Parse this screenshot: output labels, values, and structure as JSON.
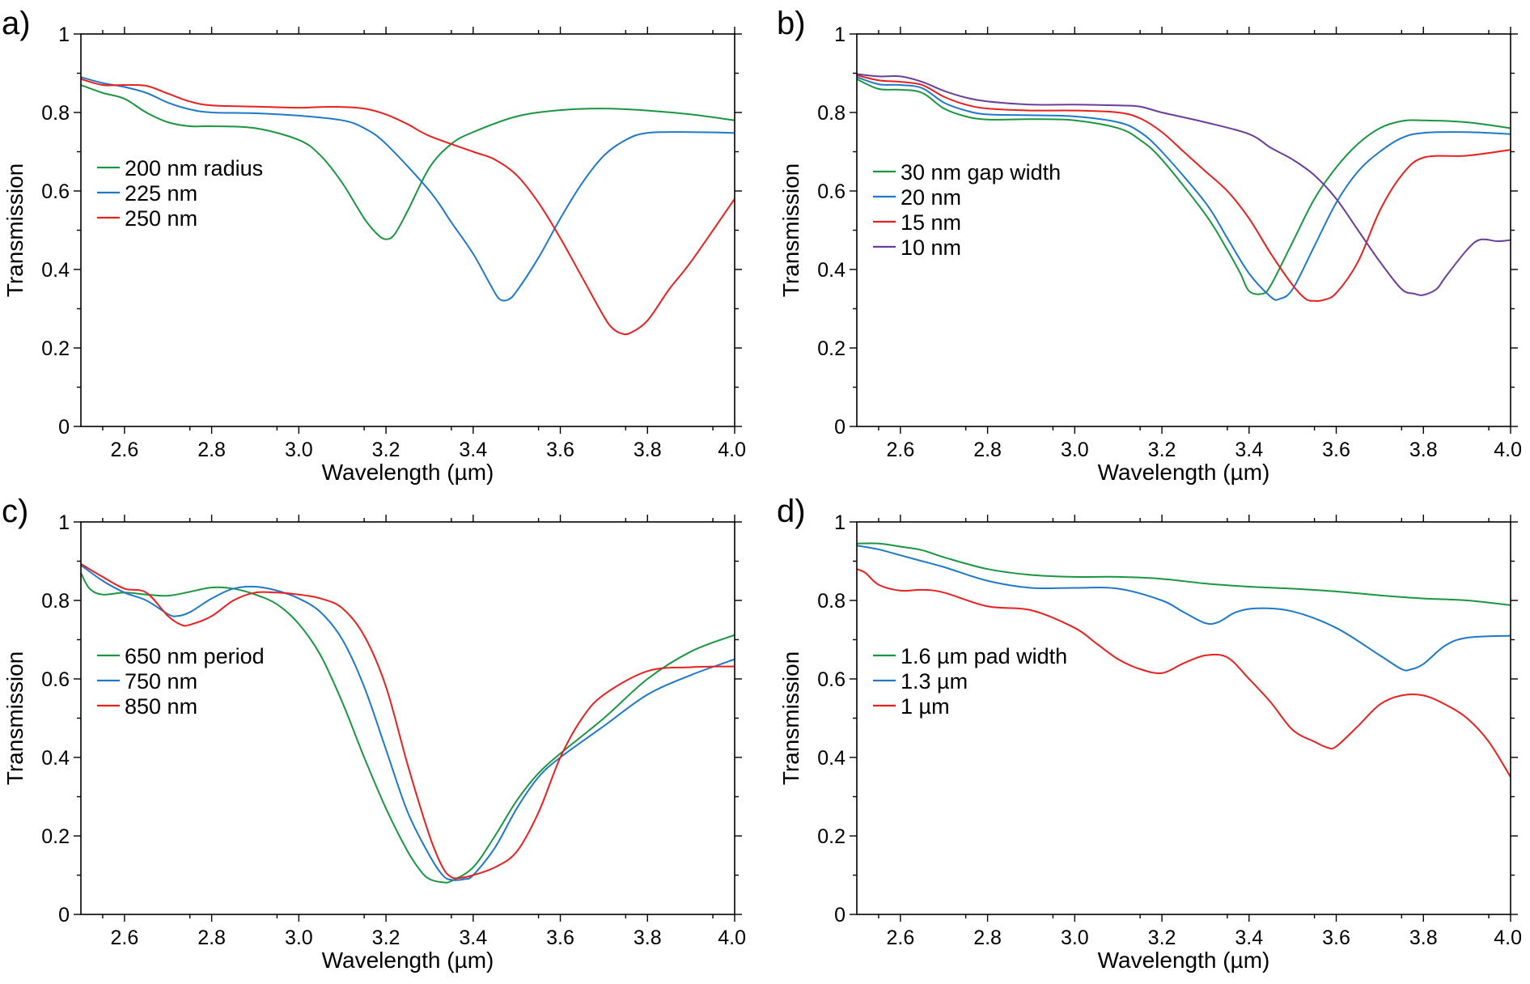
{
  "chart_data": [
    {
      "type": "line",
      "panel_label": "a)",
      "xlabel": "Wavelength (µm)",
      "ylabel": "Transmission",
      "xlim": [
        2.5,
        4.0
      ],
      "ylim": [
        0,
        1
      ],
      "x_ticks": [
        "2.6",
        "2.8",
        "3.0",
        "3.2",
        "3.4",
        "3.6",
        "3.8",
        "4.0"
      ],
      "y_ticks": [
        "0",
        "0.2",
        "0.4",
        "0.6",
        "0.8",
        "1"
      ],
      "legend_position": "center-left",
      "series": [
        {
          "name": "200 nm radius",
          "color": "#1a9641",
          "x": [
            2.5,
            2.55,
            2.6,
            2.65,
            2.7,
            2.75,
            2.8,
            2.9,
            3.0,
            3.05,
            3.1,
            3.15,
            3.18,
            3.2,
            3.22,
            3.25,
            3.3,
            3.35,
            3.4,
            3.5,
            3.6,
            3.7,
            3.8,
            3.9,
            4.0
          ],
          "y": [
            0.87,
            0.85,
            0.835,
            0.8,
            0.775,
            0.765,
            0.765,
            0.76,
            0.73,
            0.69,
            0.62,
            0.53,
            0.49,
            0.477,
            0.49,
            0.55,
            0.66,
            0.72,
            0.75,
            0.79,
            0.806,
            0.81,
            0.805,
            0.795,
            0.78
          ]
        },
        {
          "name": "225 nm",
          "color": "#1f78c8",
          "x": [
            2.5,
            2.55,
            2.6,
            2.65,
            2.7,
            2.75,
            2.8,
            2.9,
            3.0,
            3.1,
            3.15,
            3.2,
            3.3,
            3.35,
            3.4,
            3.44,
            3.46,
            3.48,
            3.5,
            3.55,
            3.6,
            3.65,
            3.7,
            3.75,
            3.8,
            3.9,
            4.0
          ],
          "y": [
            0.89,
            0.875,
            0.865,
            0.85,
            0.825,
            0.808,
            0.8,
            0.798,
            0.792,
            0.78,
            0.76,
            0.72,
            0.6,
            0.52,
            0.44,
            0.36,
            0.325,
            0.323,
            0.345,
            0.43,
            0.53,
            0.62,
            0.69,
            0.73,
            0.748,
            0.75,
            0.748
          ]
        },
        {
          "name": "250 nm",
          "color": "#e8201f",
          "x": [
            2.5,
            2.55,
            2.6,
            2.65,
            2.7,
            2.75,
            2.8,
            2.9,
            3.0,
            3.05,
            3.1,
            3.15,
            3.2,
            3.25,
            3.3,
            3.4,
            3.45,
            3.5,
            3.55,
            3.6,
            3.65,
            3.7,
            3.72,
            3.74,
            3.76,
            3.8,
            3.85,
            3.9,
            4.0
          ],
          "y": [
            0.885,
            0.87,
            0.87,
            0.868,
            0.848,
            0.828,
            0.818,
            0.815,
            0.812,
            0.814,
            0.814,
            0.81,
            0.795,
            0.77,
            0.74,
            0.7,
            0.68,
            0.64,
            0.57,
            0.48,
            0.38,
            0.28,
            0.25,
            0.237,
            0.238,
            0.27,
            0.35,
            0.42,
            0.58
          ]
        }
      ]
    },
    {
      "type": "line",
      "panel_label": "b)",
      "xlabel": "Wavelength (µm)",
      "ylabel": "Transmission",
      "xlim": [
        2.5,
        4.0
      ],
      "ylim": [
        0,
        1
      ],
      "x_ticks": [
        "2.6",
        "2.8",
        "3.0",
        "3.2",
        "3.4",
        "3.6",
        "3.8",
        "4.0"
      ],
      "y_ticks": [
        "0",
        "0.2",
        "0.4",
        "0.6",
        "0.8",
        "1"
      ],
      "legend_position": "center-left",
      "series": [
        {
          "name": "30 nm gap width",
          "color": "#1a9641",
          "x": [
            2.5,
            2.55,
            2.6,
            2.65,
            2.7,
            2.75,
            2.8,
            2.9,
            3.0,
            3.1,
            3.15,
            3.2,
            3.3,
            3.35,
            3.38,
            3.4,
            3.43,
            3.45,
            3.5,
            3.55,
            3.6,
            3.65,
            3.7,
            3.75,
            3.8,
            3.9,
            4.0
          ],
          "y": [
            0.885,
            0.86,
            0.858,
            0.85,
            0.81,
            0.79,
            0.782,
            0.783,
            0.78,
            0.76,
            0.73,
            0.68,
            0.54,
            0.45,
            0.39,
            0.345,
            0.338,
            0.36,
            0.47,
            0.58,
            0.66,
            0.72,
            0.76,
            0.778,
            0.78,
            0.775,
            0.76
          ]
        },
        {
          "name": "20 nm",
          "color": "#1f78c8",
          "x": [
            2.5,
            2.55,
            2.6,
            2.65,
            2.7,
            2.75,
            2.8,
            2.9,
            3.0,
            3.1,
            3.15,
            3.2,
            3.3,
            3.35,
            3.4,
            3.45,
            3.47,
            3.5,
            3.55,
            3.6,
            3.65,
            3.7,
            3.75,
            3.8,
            3.9,
            4.0
          ],
          "y": [
            0.89,
            0.872,
            0.87,
            0.862,
            0.825,
            0.805,
            0.795,
            0.793,
            0.79,
            0.775,
            0.75,
            0.7,
            0.57,
            0.48,
            0.39,
            0.33,
            0.325,
            0.35,
            0.46,
            0.57,
            0.65,
            0.7,
            0.735,
            0.748,
            0.75,
            0.745
          ]
        },
        {
          "name": "15 nm",
          "color": "#e8201f",
          "x": [
            2.5,
            2.55,
            2.6,
            2.65,
            2.7,
            2.75,
            2.8,
            2.9,
            3.0,
            3.1,
            3.15,
            3.2,
            3.25,
            3.3,
            3.35,
            3.4,
            3.45,
            3.5,
            3.53,
            3.55,
            3.57,
            3.6,
            3.65,
            3.7,
            3.75,
            3.8,
            3.9,
            4.0
          ],
          "y": [
            0.895,
            0.882,
            0.878,
            0.87,
            0.84,
            0.82,
            0.81,
            0.805,
            0.805,
            0.8,
            0.785,
            0.75,
            0.7,
            0.65,
            0.6,
            0.53,
            0.44,
            0.36,
            0.325,
            0.32,
            0.322,
            0.34,
            0.42,
            0.55,
            0.64,
            0.685,
            0.69,
            0.705
          ]
        },
        {
          "name": "10 nm",
          "color": "#6a3d9a",
          "x": [
            2.5,
            2.55,
            2.6,
            2.65,
            2.7,
            2.75,
            2.8,
            2.9,
            3.0,
            3.1,
            3.15,
            3.2,
            3.3,
            3.4,
            3.45,
            3.5,
            3.55,
            3.6,
            3.65,
            3.7,
            3.75,
            3.78,
            3.8,
            3.83,
            3.85,
            3.9,
            3.93,
            3.97,
            4.0
          ],
          "y": [
            0.898,
            0.892,
            0.892,
            0.878,
            0.855,
            0.838,
            0.828,
            0.82,
            0.82,
            0.818,
            0.815,
            0.8,
            0.775,
            0.745,
            0.71,
            0.68,
            0.64,
            0.58,
            0.5,
            0.42,
            0.35,
            0.338,
            0.335,
            0.35,
            0.38,
            0.45,
            0.476,
            0.472,
            0.475
          ]
        }
      ]
    },
    {
      "type": "line",
      "panel_label": "c)",
      "xlabel": "Wavelength (µm)",
      "ylabel": "Transmission",
      "xlim": [
        2.5,
        4.0
      ],
      "ylim": [
        0,
        1
      ],
      "x_ticks": [
        "2.6",
        "2.8",
        "3.0",
        "3.2",
        "3.4",
        "3.6",
        "3.8",
        "4.0"
      ],
      "y_ticks": [
        "0",
        "0.2",
        "0.4",
        "0.6",
        "0.8",
        "1"
      ],
      "legend_position": "center-left",
      "series": [
        {
          "name": "650 nm period",
          "color": "#1a9641",
          "x": [
            2.5,
            2.52,
            2.55,
            2.6,
            2.65,
            2.7,
            2.75,
            2.8,
            2.85,
            2.9,
            2.95,
            3.0,
            3.05,
            3.1,
            3.15,
            3.2,
            3.25,
            3.28,
            3.3,
            3.33,
            3.35,
            3.4,
            3.45,
            3.5,
            3.55,
            3.6,
            3.7,
            3.8,
            3.9,
            4.0
          ],
          "y": [
            0.87,
            0.83,
            0.815,
            0.82,
            0.815,
            0.812,
            0.822,
            0.833,
            0.83,
            0.815,
            0.79,
            0.74,
            0.66,
            0.54,
            0.4,
            0.27,
            0.16,
            0.11,
            0.09,
            0.082,
            0.085,
            0.12,
            0.2,
            0.29,
            0.36,
            0.41,
            0.5,
            0.6,
            0.67,
            0.712
          ]
        },
        {
          "name": "750 nm",
          "color": "#1f78c8",
          "x": [
            2.5,
            2.55,
            2.6,
            2.65,
            2.7,
            2.72,
            2.75,
            2.8,
            2.85,
            2.9,
            2.95,
            3.0,
            3.05,
            3.1,
            3.15,
            3.2,
            3.25,
            3.3,
            3.33,
            3.35,
            3.38,
            3.4,
            3.45,
            3.5,
            3.55,
            3.6,
            3.7,
            3.8,
            3.9,
            4.0
          ],
          "y": [
            0.89,
            0.85,
            0.82,
            0.8,
            0.765,
            0.76,
            0.77,
            0.805,
            0.83,
            0.835,
            0.825,
            0.805,
            0.77,
            0.7,
            0.58,
            0.42,
            0.26,
            0.15,
            0.1,
            0.088,
            0.09,
            0.1,
            0.17,
            0.27,
            0.35,
            0.4,
            0.48,
            0.56,
            0.61,
            0.65
          ]
        },
        {
          "name": "850 nm",
          "color": "#e8201f",
          "x": [
            2.5,
            2.55,
            2.6,
            2.65,
            2.7,
            2.73,
            2.75,
            2.8,
            2.85,
            2.9,
            2.95,
            3.0,
            3.05,
            3.1,
            3.15,
            3.2,
            3.25,
            3.3,
            3.33,
            3.35,
            3.37,
            3.4,
            3.45,
            3.5,
            3.55,
            3.6,
            3.65,
            3.7,
            3.8,
            3.9,
            4.0
          ],
          "y": [
            0.893,
            0.86,
            0.83,
            0.82,
            0.76,
            0.738,
            0.738,
            0.76,
            0.8,
            0.82,
            0.82,
            0.815,
            0.805,
            0.78,
            0.71,
            0.58,
            0.38,
            0.2,
            0.12,
            0.095,
            0.093,
            0.1,
            0.12,
            0.16,
            0.26,
            0.4,
            0.5,
            0.56,
            0.62,
            0.63,
            0.632
          ]
        }
      ]
    },
    {
      "type": "line",
      "panel_label": "d)",
      "xlabel": "Wavelength (µm)",
      "ylabel": "Transmission",
      "xlim": [
        2.5,
        4.0
      ],
      "ylim": [
        0,
        1
      ],
      "x_ticks": [
        "2.6",
        "2.8",
        "3.0",
        "3.2",
        "3.4",
        "3.6",
        "3.8",
        "4.0"
      ],
      "y_ticks": [
        "0",
        "0.2",
        "0.4",
        "0.6",
        "0.8",
        "1"
      ],
      "legend_position": "center-left",
      "series": [
        {
          "name": "1.6 µm pad width",
          "color": "#1a9641",
          "x": [
            2.5,
            2.55,
            2.6,
            2.65,
            2.7,
            2.8,
            2.9,
            3.0,
            3.1,
            3.2,
            3.3,
            3.4,
            3.5,
            3.6,
            3.7,
            3.8,
            3.9,
            4.0
          ],
          "y": [
            0.945,
            0.945,
            0.937,
            0.928,
            0.91,
            0.88,
            0.865,
            0.86,
            0.86,
            0.855,
            0.843,
            0.835,
            0.83,
            0.823,
            0.813,
            0.805,
            0.8,
            0.788
          ]
        },
        {
          "name": "1.3 µm",
          "color": "#1f78c8",
          "x": [
            2.5,
            2.55,
            2.6,
            2.65,
            2.7,
            2.8,
            2.9,
            3.0,
            3.1,
            3.2,
            3.25,
            3.3,
            3.33,
            3.37,
            3.42,
            3.5,
            3.6,
            3.7,
            3.75,
            3.77,
            3.8,
            3.85,
            3.9,
            4.0
          ],
          "y": [
            0.94,
            0.93,
            0.915,
            0.9,
            0.885,
            0.85,
            0.832,
            0.832,
            0.83,
            0.8,
            0.77,
            0.742,
            0.745,
            0.77,
            0.78,
            0.772,
            0.73,
            0.66,
            0.625,
            0.624,
            0.638,
            0.685,
            0.705,
            0.71
          ]
        },
        {
          "name": "1 µm",
          "color": "#e8201f",
          "x": [
            2.5,
            2.52,
            2.55,
            2.6,
            2.65,
            2.7,
            2.8,
            2.9,
            3.0,
            3.05,
            3.1,
            3.15,
            3.2,
            3.25,
            3.3,
            3.35,
            3.4,
            3.45,
            3.5,
            3.55,
            3.58,
            3.6,
            3.65,
            3.7,
            3.75,
            3.8,
            3.85,
            3.9,
            3.95,
            4.0
          ],
          "y": [
            0.88,
            0.87,
            0.84,
            0.825,
            0.827,
            0.82,
            0.785,
            0.775,
            0.73,
            0.69,
            0.65,
            0.625,
            0.615,
            0.64,
            0.66,
            0.655,
            0.6,
            0.54,
            0.47,
            0.44,
            0.425,
            0.428,
            0.48,
            0.535,
            0.558,
            0.558,
            0.535,
            0.5,
            0.44,
            0.35
          ]
        }
      ]
    }
  ]
}
